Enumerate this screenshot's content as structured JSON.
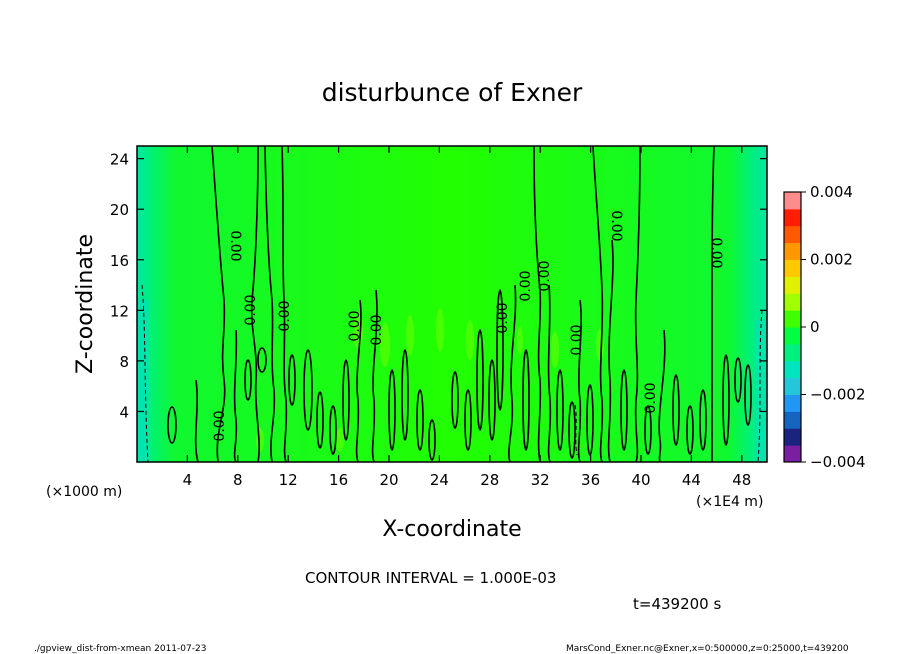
{
  "chart_data": {
    "type": "heatmap",
    "title": "disturbunce of Exner",
    "xlabel": "X-coordinate",
    "ylabel": "Z-coordinate",
    "x_unit_left": "(×1000 m)",
    "x_unit_right": "(×1E4 m)",
    "xlim": [
      0,
      50
    ],
    "ylim": [
      0,
      25
    ],
    "x_ticks": [
      4,
      8,
      12,
      16,
      20,
      24,
      28,
      32,
      36,
      40,
      44,
      48
    ],
    "x_tick_labels": [
      "4",
      "8",
      "12",
      "16",
      "20",
      "24",
      "28",
      "32",
      "36",
      "40",
      "44",
      "48"
    ],
    "y_ticks": [
      4,
      8,
      12,
      16,
      20,
      24
    ],
    "y_tick_labels": [
      "4",
      "8",
      "12",
      "16",
      "20",
      "24"
    ],
    "colorbar": {
      "range": [
        -0.004,
        0.004
      ],
      "tick_values": [
        0.004,
        0.002,
        0,
        -0.002,
        -0.004
      ],
      "tick_labels": [
        "0.004",
        "0.002",
        "0",
        "−0.002",
        "−0.004"
      ],
      "colors": [
        "#7b1fa2",
        "#1a237e",
        "#1565c0",
        "#2196f3",
        "#26c6da",
        "#00e5c0",
        "#00f080",
        "#00ff40",
        "#40ff00",
        "#a0ff00",
        "#e0f000",
        "#ffc800",
        "#ff9800",
        "#ff5a00",
        "#ff1e00",
        "#ff8c8c"
      ]
    },
    "contour_label": "0.00",
    "contour_interval_text": "CONTOUR INTERVAL = 1.000E-03",
    "time_text": "t=439200 s",
    "footer_left": "./gpview_dist-from-xmean  2011-07-23",
    "footer_right": "MarsCond_Exner.nc@Exner,x=0:500000,z=0:25000,t=439200"
  }
}
